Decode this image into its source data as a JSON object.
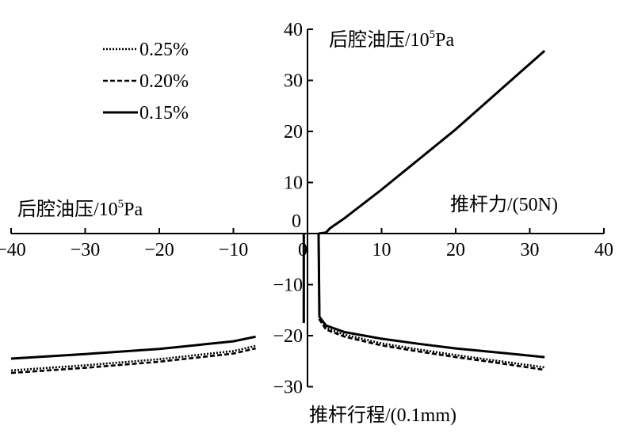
{
  "chart_data": {
    "type": "line",
    "axis_labels": {
      "left": "后腔油压/10",
      "left_sup": "5",
      "left_unit": "Pa",
      "top": "后腔油压/10",
      "top_sup": "5",
      "top_unit": "Pa",
      "right": "推杆力/(50N)",
      "bottom": "推杆行程/(0.1mm)"
    },
    "x_ticks": [
      "−40",
      "−30",
      "−20",
      "−10",
      "0",
      "10",
      "20",
      "30",
      "40"
    ],
    "x_tick_values": [
      -40,
      -30,
      -20,
      -10,
      0,
      10,
      20,
      30,
      40
    ],
    "y_ticks": [
      "40",
      "30",
      "20",
      "10",
      "0",
      "−10",
      "−20",
      "−30"
    ],
    "y_tick_values": [
      40,
      30,
      20,
      10,
      0,
      -10,
      -20,
      -30
    ],
    "xlim": [
      -40,
      40
    ],
    "ylim": [
      -30,
      40
    ],
    "grid": false,
    "legend_position": "top-left",
    "series": [
      {
        "name": "0.25%",
        "style": "dotted",
        "right": [
          [
            1.5,
            0
          ],
          [
            1.6,
            -16.5
          ],
          [
            2.5,
            -18.5
          ],
          [
            5,
            -19.8
          ],
          [
            10,
            -21.5
          ],
          [
            15,
            -22.7
          ],
          [
            20,
            -23.8
          ],
          [
            25,
            -24.8
          ],
          [
            32,
            -26.2
          ]
        ],
        "left": [
          [
            -40,
            -26.8
          ],
          [
            -30,
            -25.8
          ],
          [
            -20,
            -24.6
          ],
          [
            -10,
            -23
          ],
          [
            -7,
            -22
          ]
        ],
        "stem": [
          [
            -0.5,
            0
          ],
          [
            -0.5,
            -17.5
          ]
        ]
      },
      {
        "name": "0.20%",
        "style": "dashed",
        "right": [
          [
            1.5,
            0
          ],
          [
            1.6,
            -16.8
          ],
          [
            2.5,
            -18.8
          ],
          [
            5,
            -20.2
          ],
          [
            10,
            -21.9
          ],
          [
            15,
            -23.1
          ],
          [
            20,
            -24.2
          ],
          [
            25,
            -25.2
          ],
          [
            32,
            -26.7
          ]
        ],
        "left": [
          [
            -40,
            -27.3
          ],
          [
            -30,
            -26.3
          ],
          [
            -20,
            -25.1
          ],
          [
            -10,
            -23.5
          ],
          [
            -7,
            -22.5
          ]
        ],
        "stem": [
          [
            -0.5,
            0
          ],
          [
            -0.5,
            -17.5
          ]
        ]
      },
      {
        "name": "0.15%",
        "style": "solid",
        "upper": [
          [
            1.5,
            0
          ],
          [
            2.5,
            0.2
          ],
          [
            3,
            1
          ],
          [
            3.5,
            1.5
          ],
          [
            4,
            2
          ],
          [
            5,
            3
          ],
          [
            10,
            8.6
          ],
          [
            20,
            20.4
          ],
          [
            32,
            35.8
          ]
        ],
        "right": [
          [
            1.5,
            0
          ],
          [
            1.6,
            -16.3
          ],
          [
            2.5,
            -18
          ],
          [
            5,
            -19.3
          ],
          [
            10,
            -20.6
          ],
          [
            15,
            -21.6
          ],
          [
            20,
            -22.5
          ],
          [
            25,
            -23.2
          ],
          [
            32,
            -24.2
          ]
        ],
        "left": [
          [
            -40,
            -24.5
          ],
          [
            -30,
            -23.6
          ],
          [
            -20,
            -22.6
          ],
          [
            -10,
            -21.1
          ],
          [
            -7,
            -20.2
          ]
        ],
        "stem": [
          [
            -0.5,
            0
          ],
          [
            -0.5,
            -17.5
          ]
        ]
      }
    ]
  }
}
